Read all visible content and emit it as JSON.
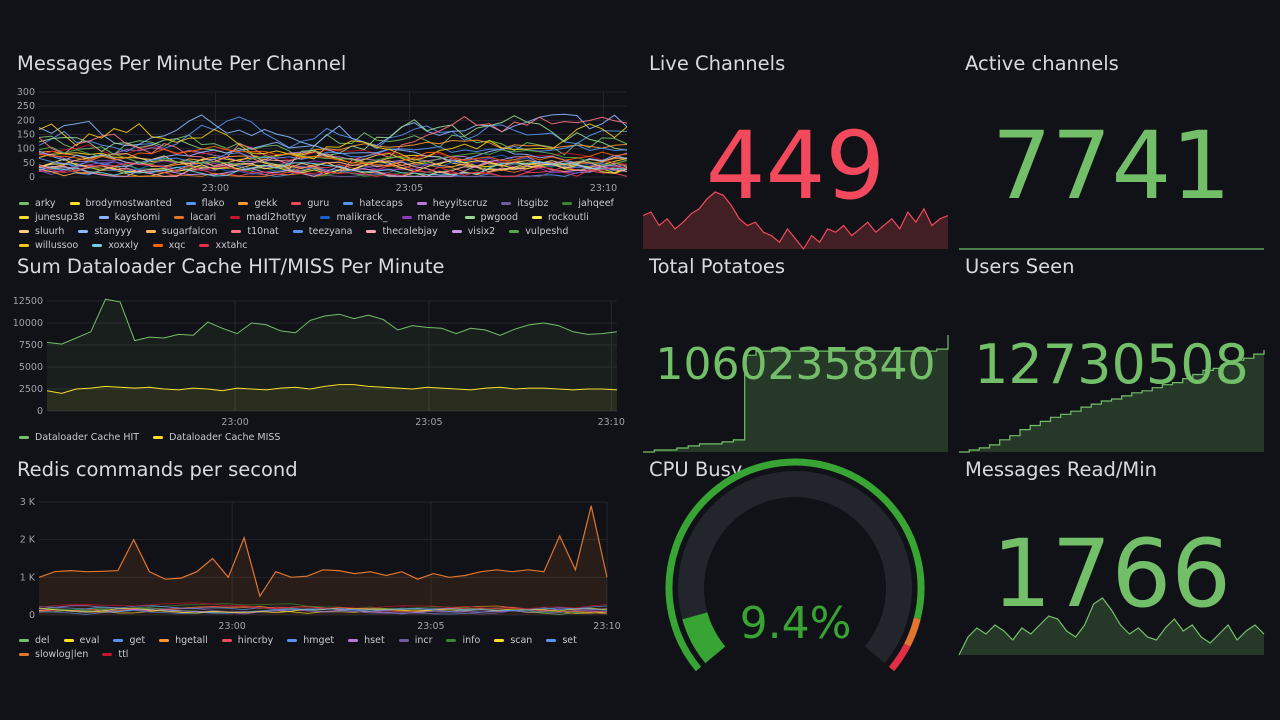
{
  "colors": {
    "green": "#73bf69",
    "red": "#f2495c",
    "yellow": "#fade2a",
    "gauge_green": "#37a433",
    "gauge_orange": "#e0752d",
    "gauge_red": "#e02f44"
  },
  "panels": {
    "messages": {
      "title": "Messages Per Minute Per Channel",
      "yticks": [
        "300",
        "250",
        "200",
        "150",
        "100",
        "50",
        "0"
      ],
      "xticks": [
        "23:00",
        "23:05",
        "23:10"
      ],
      "legend": [
        {
          "name": "arky",
          "color": "#73bf69"
        },
        {
          "name": "brodymostwanted",
          "color": "#fade2a"
        },
        {
          "name": "flako",
          "color": "#5794f2"
        },
        {
          "name": "gekk",
          "color": "#ff9830"
        },
        {
          "name": "guru",
          "color": "#f2495c"
        },
        {
          "name": "hatecaps",
          "color": "#5794f2"
        },
        {
          "name": "heyyitscruz",
          "color": "#b877d9"
        },
        {
          "name": "itsgibz",
          "color": "#705da0"
        },
        {
          "name": "jahqeef",
          "color": "#37872d"
        },
        {
          "name": "junesup38",
          "color": "#fade2a"
        },
        {
          "name": "kayshomi",
          "color": "#8ab8ff"
        },
        {
          "name": "lacari",
          "color": "#e0752d"
        },
        {
          "name": "madi2hottyy",
          "color": "#c4162a"
        },
        {
          "name": "malikrack_",
          "color": "#1f60c4"
        },
        {
          "name": "mande",
          "color": "#8f3bb8"
        },
        {
          "name": "pwgood",
          "color": "#96d98d"
        },
        {
          "name": "rockoutli",
          "color": "#ffee52"
        },
        {
          "name": "sluurh",
          "color": "#ffcb7d"
        },
        {
          "name": "stanyyy",
          "color": "#8ab8ff"
        },
        {
          "name": "sugarfalcon",
          "color": "#ffb357"
        },
        {
          "name": "t10nat",
          "color": "#ff7383"
        },
        {
          "name": "teezyana",
          "color": "#5794f2"
        },
        {
          "name": "thecalebjay",
          "color": "#ffa6b0"
        },
        {
          "name": "visix2",
          "color": "#ca95e5"
        },
        {
          "name": "vulpeshd",
          "color": "#56a64b"
        },
        {
          "name": "willussoo",
          "color": "#f2cc0c"
        },
        {
          "name": "xoxxly",
          "color": "#6ed0e0"
        },
        {
          "name": "xqc",
          "color": "#fa6400"
        },
        {
          "name": "xxtahc",
          "color": "#e02f44"
        }
      ]
    },
    "dataloader": {
      "title": "Sum Dataloader Cache HIT/MISS Per Minute",
      "yticks": [
        "12500",
        "10000",
        "7500",
        "5000",
        "2500",
        "0"
      ],
      "xticks": [
        "23:00",
        "23:05",
        "23:10"
      ],
      "legend": [
        {
          "name": "Dataloader Cache HIT",
          "color": "#73bf69"
        },
        {
          "name": "Dataloader Cache MISS",
          "color": "#fade2a"
        }
      ]
    },
    "redis": {
      "title": "Redis commands per second",
      "yticks": [
        "3 K",
        "2 K",
        "1 K",
        "0"
      ],
      "xticks": [
        "23:00",
        "23:05",
        "23:10"
      ],
      "legend": [
        {
          "name": "del",
          "color": "#73bf69"
        },
        {
          "name": "eval",
          "color": "#fade2a"
        },
        {
          "name": "get",
          "color": "#5794f2"
        },
        {
          "name": "hgetall",
          "color": "#ff9830"
        },
        {
          "name": "hincrby",
          "color": "#f2495c"
        },
        {
          "name": "hmget",
          "color": "#5794f2"
        },
        {
          "name": "hset",
          "color": "#b877d9"
        },
        {
          "name": "incr",
          "color": "#705da0"
        },
        {
          "name": "info",
          "color": "#37872d"
        },
        {
          "name": "scan",
          "color": "#fade2a"
        },
        {
          "name": "set",
          "color": "#5794f2"
        },
        {
          "name": "slowlog|len",
          "color": "#e0752d"
        },
        {
          "name": "ttl",
          "color": "#c4162a"
        }
      ]
    },
    "live_channels": {
      "title": "Live Channels",
      "value": "449"
    },
    "active_channels": {
      "title": "Active channels",
      "value": "7741"
    },
    "total_potatoes": {
      "title": "Total Potatoes",
      "value": "1060235840"
    },
    "users_seen": {
      "title": "Users Seen",
      "value": "12730508"
    },
    "cpu_busy": {
      "title": "CPU Busy",
      "value": "9.4%",
      "percent": 9.4
    },
    "messages_read": {
      "title": "Messages Read/Min",
      "value": "1766"
    }
  }
}
